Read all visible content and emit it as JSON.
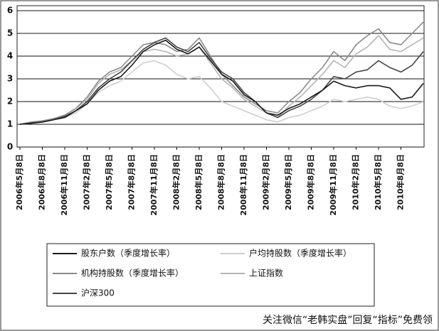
{
  "chart_data": {
    "type": "line",
    "categories": [
      "2006年5月8日",
      null,
      "2006年8月8日",
      null,
      "2006年11月8日",
      null,
      "2007年2月8日",
      null,
      "2007年5月8日",
      null,
      "2007年8月8日",
      null,
      "2007年11月8日",
      null,
      "2008年2月8日",
      null,
      "2008年5月8日",
      null,
      "2008年8月8日",
      null,
      "2008年11月8日",
      null,
      "2009年2月8日",
      null,
      "2009年5月8日",
      null,
      "2009年8月8日",
      null,
      "2009年11月8日",
      null,
      "2010年2月8日",
      null,
      "2010年5月8日",
      null,
      "2010年8月8日",
      null,
      null
    ],
    "series": [
      {
        "name": "户均持股数（季度增长率）",
        "color": "#cfcfcf",
        "values": [
          1.0,
          1.05,
          1.1,
          1.2,
          1.3,
          1.5,
          1.9,
          2.4,
          2.7,
          2.9,
          3.3,
          3.7,
          3.8,
          3.6,
          3.2,
          3.0,
          3.1,
          2.6,
          2.0,
          1.8,
          1.6,
          1.4,
          1.2,
          1.1,
          1.3,
          1.4,
          1.6,
          1.8,
          2.1,
          2.0,
          2.1,
          2.2,
          2.1,
          1.8,
          1.7,
          1.8,
          2.0
        ]
      },
      {
        "name": "上证指数",
        "color": "#b4b4b4",
        "values": [
          1.0,
          1.1,
          1.15,
          1.25,
          1.4,
          1.7,
          2.1,
          2.8,
          3.2,
          3.4,
          3.8,
          4.2,
          4.3,
          4.2,
          4.0,
          4.1,
          4.4,
          3.7,
          3.0,
          2.6,
          2.1,
          1.8,
          1.5,
          1.3,
          1.8,
          2.2,
          2.7,
          3.2,
          3.8,
          3.5,
          4.1,
          4.4,
          4.9,
          4.3,
          4.2,
          4.5,
          4.8
        ]
      },
      {
        "name": "机构持股数（季度增长率）",
        "color": "#8a8a8a",
        "values": [
          1.0,
          1.1,
          1.15,
          1.25,
          1.4,
          1.7,
          2.2,
          2.9,
          3.3,
          3.5,
          4.0,
          4.5,
          4.6,
          4.5,
          4.2,
          4.3,
          4.8,
          4.0,
          3.2,
          2.7,
          2.2,
          1.9,
          1.6,
          1.5,
          2.0,
          2.4,
          3.0,
          3.5,
          4.2,
          3.8,
          4.5,
          4.9,
          5.2,
          4.6,
          4.5,
          5.0,
          5.5
        ]
      },
      {
        "name": "沪深300",
        "color": "#444444",
        "values": [
          1.0,
          1.05,
          1.1,
          1.2,
          1.35,
          1.6,
          2.0,
          2.6,
          3.0,
          3.3,
          3.8,
          4.3,
          4.6,
          4.8,
          4.4,
          4.2,
          4.6,
          3.9,
          3.3,
          3.0,
          2.4,
          2.0,
          1.5,
          1.3,
          1.6,
          1.8,
          2.1,
          2.5,
          3.1,
          3.0,
          3.3,
          3.4,
          3.8,
          3.5,
          3.3,
          3.6,
          4.2
        ]
      },
      {
        "name": "股东户数（季度增长率）",
        "color": "#1a1a1a",
        "values": [
          1.0,
          1.05,
          1.1,
          1.2,
          1.3,
          1.6,
          1.9,
          2.5,
          2.9,
          3.1,
          3.6,
          4.2,
          4.5,
          4.7,
          4.3,
          4.1,
          4.4,
          3.8,
          3.2,
          2.9,
          2.3,
          2.0,
          1.5,
          1.4,
          1.7,
          1.9,
          2.2,
          2.5,
          2.9,
          2.7,
          2.6,
          2.7,
          2.7,
          2.6,
          2.1,
          2.2,
          2.8
        ]
      }
    ],
    "legend_order": [
      4,
      0,
      2,
      1,
      3
    ],
    "ylim": [
      0,
      6
    ],
    "yticks": [
      0,
      1,
      2,
      3,
      4,
      5,
      6
    ],
    "grid": true
  },
  "watermark": "关注微信“老韩实盘”回复“指标”免费领"
}
